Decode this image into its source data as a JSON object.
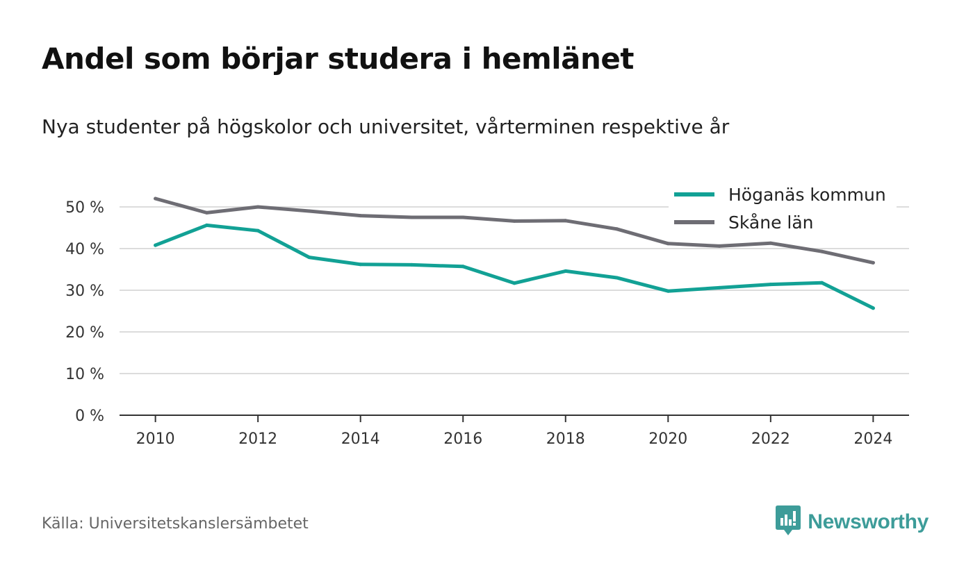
{
  "title": "Andel som börjar studera i hemlänet",
  "subtitle": "Nya studenter på högskolor och universitet, vårterminen respektive år",
  "source": "Källa: Universitetskanslersämbetet",
  "brand": {
    "name": "Newsworthy",
    "icon": "newsworthy-logo-icon",
    "color": "#3d9c99"
  },
  "chart_data": {
    "type": "line",
    "x": [
      2010,
      2011,
      2012,
      2013,
      2014,
      2015,
      2016,
      2017,
      2018,
      2019,
      2020,
      2021,
      2022,
      2023,
      2024
    ],
    "x_ticks": [
      "2010",
      "2012",
      "2014",
      "2016",
      "2018",
      "2020",
      "2022",
      "2024"
    ],
    "x_tick_values": [
      2010,
      2012,
      2014,
      2016,
      2018,
      2020,
      2022,
      2024
    ],
    "y_ticks": [
      "0 %",
      "10 %",
      "20 %",
      "30 %",
      "40 %",
      "50 %"
    ],
    "y_tick_values": [
      0,
      10,
      20,
      30,
      40,
      50
    ],
    "ylim": [
      0,
      55
    ],
    "xlim": [
      2009.3,
      2024.7
    ],
    "grid": true,
    "legend_position": "top-right",
    "series": [
      {
        "name": "Höganäs kommun",
        "color": "#12a195",
        "values": [
          40.8,
          45.6,
          44.3,
          37.9,
          36.2,
          36.1,
          35.7,
          31.7,
          34.6,
          33.0,
          29.8,
          30.6,
          31.4,
          31.8,
          25.7
        ]
      },
      {
        "name": "Skåne län",
        "color": "#6e6d74",
        "values": [
          52.0,
          48.6,
          50.0,
          49.0,
          47.9,
          47.5,
          47.5,
          46.6,
          46.7,
          44.7,
          41.2,
          40.6,
          41.3,
          39.3,
          36.6
        ]
      }
    ]
  }
}
